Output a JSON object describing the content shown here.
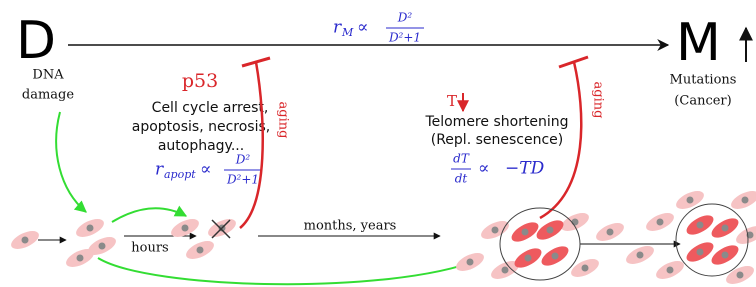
{
  "labels": {
    "damage_letter": "D",
    "damage_text": [
      "DNA",
      "damage"
    ],
    "mutation_letter": "M",
    "mutation_text": [
      "Mutations",
      "(Cancer)"
    ],
    "p53": "p53",
    "p53_effects": [
      "Cell cycle arrest,",
      "apoptosis, necrosis,",
      "autophagy..."
    ],
    "aging_left": "aging",
    "aging_right": "aging",
    "telomere_symbol": "T",
    "telomere_text": [
      "Telomere shortening",
      "(Repl. senescence)"
    ],
    "hours": "hours",
    "months_years": "months, years"
  },
  "formulas": {
    "mutation_rate": {
      "lhs": "r",
      "sub": "M",
      "rel": "∝",
      "num": "D²",
      "den": "D²+1"
    },
    "apoptosis_rate": {
      "lhs": "r",
      "sub": "apopt",
      "rel": "∝",
      "num": "D²",
      "den": "D²+1"
    },
    "telomere": {
      "num": "dT",
      "den": "dt",
      "rel": "∝",
      "rhs": "−TD"
    }
  }
}
